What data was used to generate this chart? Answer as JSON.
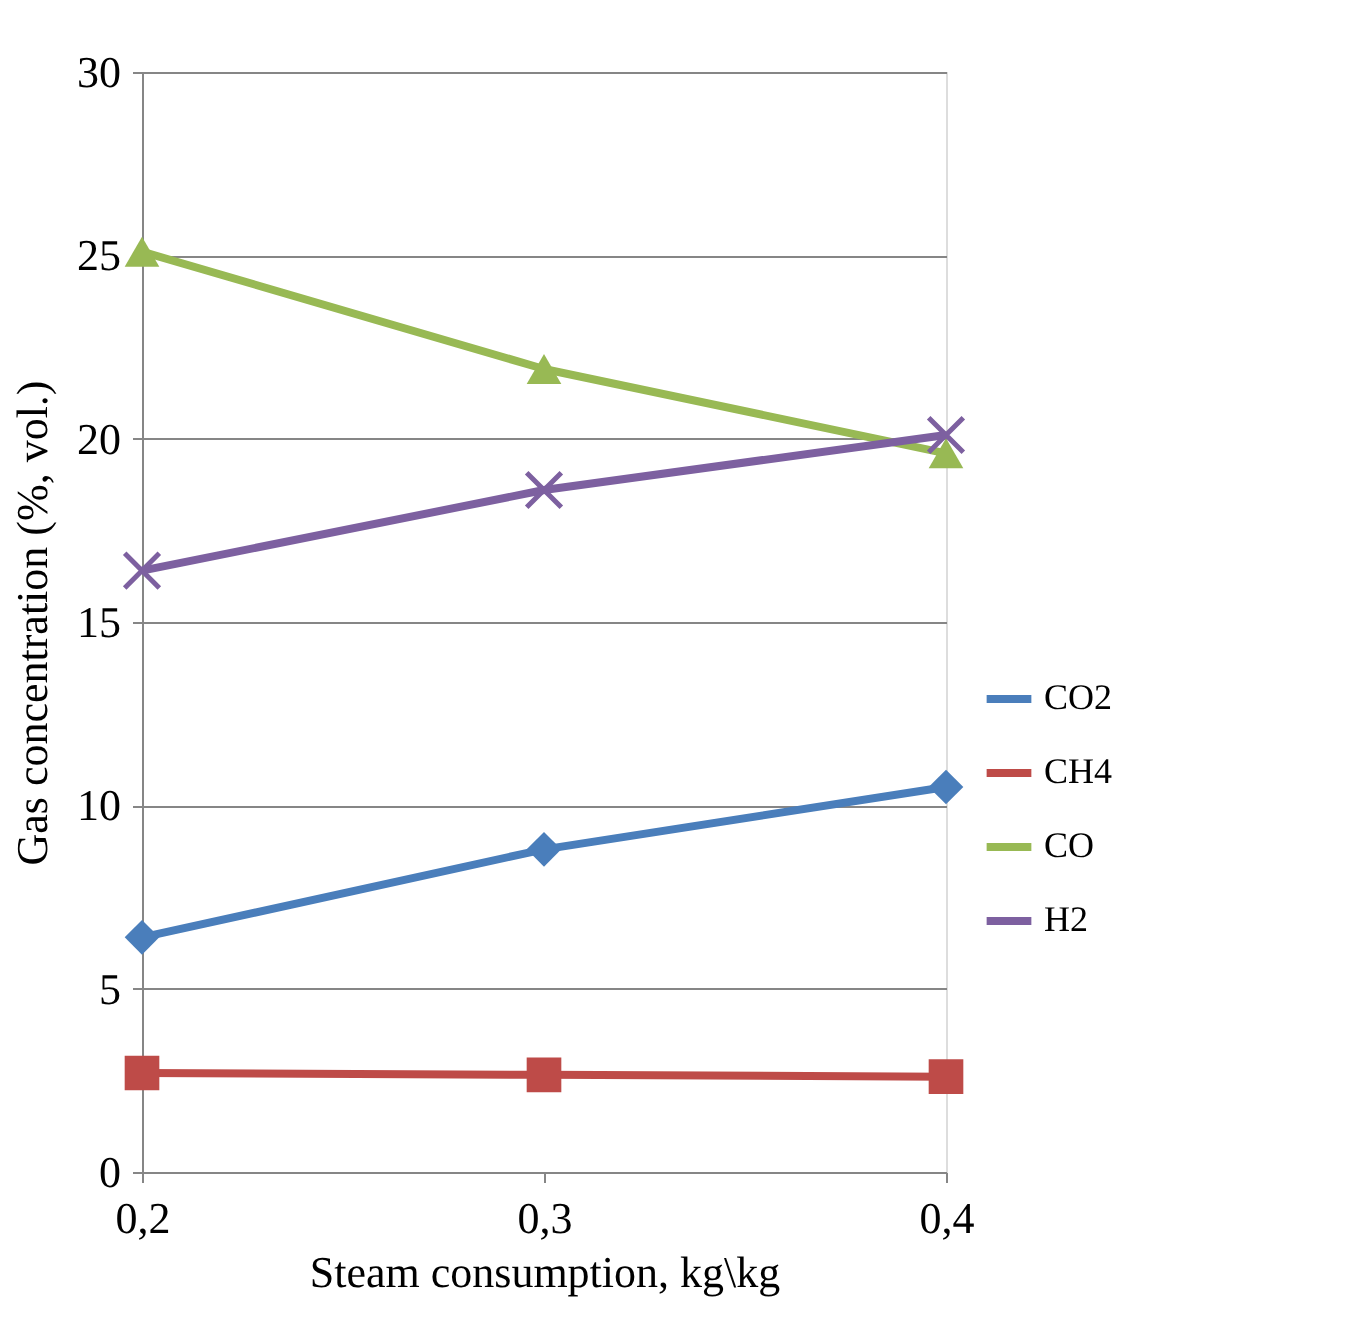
{
  "chart_data": {
    "type": "line",
    "xlabel": "Steam consumption, kg\\kg",
    "ylabel": "Gas  concentration  (%, vol.)",
    "categories": [
      "0,2",
      "0,3",
      "0,4"
    ],
    "series": [
      {
        "name": "CO2",
        "color": "#4a7ebb",
        "marker": "diamond",
        "values": [
          6.4,
          8.8,
          10.5
        ]
      },
      {
        "name": "CH4",
        "color": "#be4b48",
        "marker": "square",
        "values": [
          2.7,
          2.65,
          2.6
        ]
      },
      {
        "name": "CO",
        "color": "#98b954",
        "marker": "triangle",
        "values": [
          25.1,
          21.9,
          19.6
        ]
      },
      {
        "name": "H2",
        "color": "#7d60a0",
        "marker": "cross",
        "values": [
          16.4,
          18.6,
          20.1
        ]
      }
    ],
    "ylim": [
      0,
      30
    ],
    "yticks": [
      0,
      5,
      10,
      15,
      20,
      25,
      30
    ],
    "grid": "y",
    "legend": "right",
    "line_style": "solid"
  }
}
